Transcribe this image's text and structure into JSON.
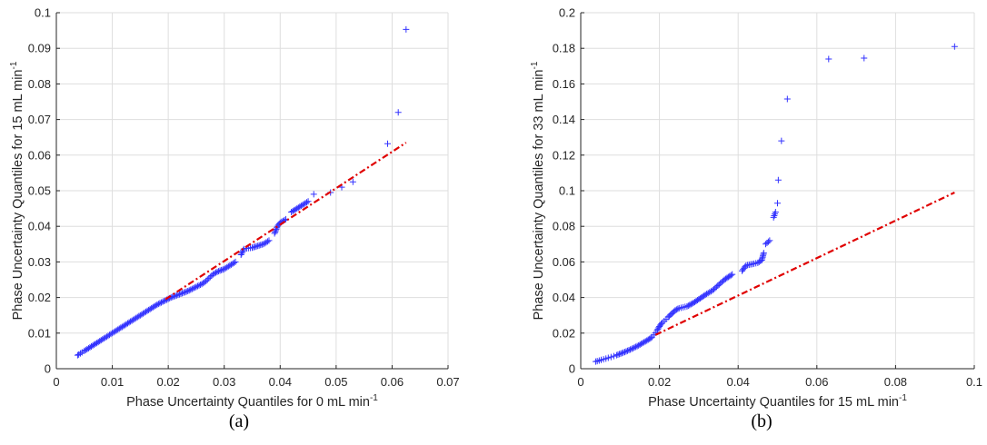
{
  "colors": {
    "points": "#3333ff",
    "reference": "#e00000",
    "grid": "#dedede",
    "axis": "#262626"
  },
  "chart_data": [
    {
      "type": "scatter",
      "panel_label": "(a)",
      "xlabel": "Phase Uncertainty Quantiles for 0 mL min",
      "xlabel_sup": "-1",
      "ylabel": "Phase Uncertainty Quantiles for 15 mL min",
      "ylabel_sup": "-1",
      "xlim": [
        0,
        0.07
      ],
      "ylim": [
        0,
        0.1
      ],
      "xticks": [
        0,
        0.01,
        0.02,
        0.03,
        0.04,
        0.05,
        0.06,
        0.07
      ],
      "xtick_labels": [
        "0",
        "0.01",
        "0.02",
        "0.03",
        "0.04",
        "0.05",
        "0.06",
        "0.07"
      ],
      "yticks": [
        0,
        0.01,
        0.02,
        0.03,
        0.04,
        0.05,
        0.06,
        0.07,
        0.08,
        0.09,
        0.1
      ],
      "ytick_labels": [
        "0",
        "0.01",
        "0.02",
        "0.03",
        "0.04",
        "0.05",
        "0.06",
        "0.07",
        "0.08",
        "0.09",
        "0.1"
      ],
      "grid": true,
      "reference_line": {
        "x": [
          0.0195,
          0.0625
        ],
        "y": [
          0.0195,
          0.0635
        ]
      },
      "series": [
        {
          "marker": "+",
          "points": [
            [
              0.0038,
              0.0038
            ],
            [
              0.004,
              0.004
            ],
            [
              0.0043,
              0.0043
            ],
            [
              0.0046,
              0.0046
            ],
            [
              0.005,
              0.005
            ],
            [
              0.0055,
              0.0055
            ],
            [
              0.006,
              0.006
            ],
            [
              0.0065,
              0.0065
            ],
            [
              0.007,
              0.007
            ],
            [
              0.0075,
              0.0075
            ],
            [
              0.008,
              0.008
            ],
            [
              0.0085,
              0.0085
            ],
            [
              0.009,
              0.009
            ],
            [
              0.0095,
              0.0095
            ],
            [
              0.01,
              0.01
            ],
            [
              0.0105,
              0.0105
            ],
            [
              0.011,
              0.011
            ],
            [
              0.0115,
              0.0115
            ],
            [
              0.012,
              0.012
            ],
            [
              0.0125,
              0.0125
            ],
            [
              0.013,
              0.013
            ],
            [
              0.0135,
              0.0135
            ],
            [
              0.014,
              0.014
            ],
            [
              0.0145,
              0.0145
            ],
            [
              0.015,
              0.015
            ],
            [
              0.0155,
              0.0155
            ],
            [
              0.016,
              0.016
            ],
            [
              0.0165,
              0.0165
            ],
            [
              0.017,
              0.017
            ],
            [
              0.0175,
              0.0175
            ],
            [
              0.018,
              0.018
            ],
            [
              0.0185,
              0.0184
            ],
            [
              0.019,
              0.0188
            ],
            [
              0.0195,
              0.0192
            ],
            [
              0.02,
              0.0196
            ],
            [
              0.0205,
              0.02
            ],
            [
              0.021,
              0.0203
            ],
            [
              0.0215,
              0.0206
            ],
            [
              0.022,
              0.0209
            ],
            [
              0.0225,
              0.0212
            ],
            [
              0.023,
              0.0215
            ],
            [
              0.0235,
              0.0218
            ],
            [
              0.024,
              0.0222
            ],
            [
              0.0245,
              0.0226
            ],
            [
              0.025,
              0.023
            ],
            [
              0.0255,
              0.0234
            ],
            [
              0.026,
              0.0238
            ],
            [
              0.0265,
              0.0243
            ],
            [
              0.027,
              0.025
            ],
            [
              0.0275,
              0.0258
            ],
            [
              0.028,
              0.0265
            ],
            [
              0.0285,
              0.027
            ],
            [
              0.029,
              0.0274
            ],
            [
              0.03,
              0.028
            ],
            [
              0.031,
              0.029
            ],
            [
              0.032,
              0.03
            ],
            [
              0.033,
              0.032
            ],
            [
              0.0335,
              0.0336
            ],
            [
              0.034,
              0.0338
            ],
            [
              0.035,
              0.034
            ],
            [
              0.036,
              0.0345
            ],
            [
              0.037,
              0.035
            ],
            [
              0.038,
              0.036
            ],
            [
              0.039,
              0.038
            ],
            [
              0.0395,
              0.04
            ],
            [
              0.04,
              0.041
            ],
            [
              0.041,
              0.042
            ],
            [
              0.042,
              0.044
            ],
            [
              0.043,
              0.045
            ],
            [
              0.044,
              0.046
            ],
            [
              0.045,
              0.047
            ],
            [
              0.046,
              0.049
            ],
            [
              0.049,
              0.0495
            ],
            [
              0.051,
              0.051
            ],
            [
              0.053,
              0.0525
            ],
            [
              0.0592,
              0.0632
            ],
            [
              0.0611,
              0.072
            ],
            [
              0.0625,
              0.0953
            ]
          ]
        }
      ]
    },
    {
      "type": "scatter",
      "panel_label": "(b)",
      "xlabel": "Phase Uncertainty Quantiles for 15 mL min",
      "xlabel_sup": "-1",
      "ylabel": "Phase Uncertainty Quantiles for 33 mL min",
      "ylabel_sup": "-1",
      "xlim": [
        0,
        0.1
      ],
      "ylim": [
        0,
        0.2
      ],
      "xticks": [
        0,
        0.02,
        0.04,
        0.06,
        0.08,
        0.1
      ],
      "xtick_labels": [
        "0",
        "0.02",
        "0.04",
        "0.06",
        "0.08",
        "0.1"
      ],
      "yticks": [
        0,
        0.02,
        0.04,
        0.06,
        0.08,
        0.1,
        0.12,
        0.14,
        0.16,
        0.18,
        0.2
      ],
      "ytick_labels": [
        "0",
        "0.02",
        "0.04",
        "0.06",
        "0.08",
        "0.1",
        "0.12",
        "0.14",
        "0.16",
        "0.18",
        "0.2"
      ],
      "grid": true,
      "reference_line": {
        "x": [
          0.019,
          0.095
        ],
        "y": [
          0.019,
          0.099
        ]
      },
      "series": [
        {
          "marker": "+",
          "points": [
            [
              0.0038,
              0.004
            ],
            [
              0.0042,
              0.0043
            ],
            [
              0.0047,
              0.0046
            ],
            [
              0.0052,
              0.005
            ],
            [
              0.0058,
              0.0053
            ],
            [
              0.0064,
              0.0057
            ],
            [
              0.007,
              0.0061
            ],
            [
              0.0077,
              0.0066
            ],
            [
              0.0084,
              0.0071
            ],
            [
              0.0091,
              0.0076
            ],
            [
              0.0098,
              0.0082
            ],
            [
              0.0105,
              0.0088
            ],
            [
              0.0112,
              0.0094
            ],
            [
              0.0119,
              0.0101
            ],
            [
              0.0126,
              0.0108
            ],
            [
              0.0133,
              0.0115
            ],
            [
              0.014,
              0.0123
            ],
            [
              0.0147,
              0.0131
            ],
            [
              0.0154,
              0.014
            ],
            [
              0.0161,
              0.0149
            ],
            [
              0.0168,
              0.0158
            ],
            [
              0.0175,
              0.0168
            ],
            [
              0.0181,
              0.0178
            ],
            [
              0.0186,
              0.019
            ],
            [
              0.019,
              0.0202
            ],
            [
              0.0194,
              0.0215
            ],
            [
              0.0198,
              0.023
            ],
            [
              0.0202,
              0.0245
            ],
            [
              0.0207,
              0.0258
            ],
            [
              0.0212,
              0.0268
            ],
            [
              0.0217,
              0.0278
            ],
            [
              0.0222,
              0.029
            ],
            [
              0.0228,
              0.0302
            ],
            [
              0.0234,
              0.0315
            ],
            [
              0.024,
              0.0328
            ],
            [
              0.025,
              0.034
            ],
            [
              0.026,
              0.0345
            ],
            [
              0.027,
              0.035
            ],
            [
              0.028,
              0.0362
            ],
            [
              0.029,
              0.0375
            ],
            [
              0.03,
              0.039
            ],
            [
              0.031,
              0.0405
            ],
            [
              0.032,
              0.042
            ],
            [
              0.0335,
              0.044
            ],
            [
              0.0345,
              0.046
            ],
            [
              0.0355,
              0.048
            ],
            [
              0.0365,
              0.05
            ],
            [
              0.0375,
              0.0515
            ],
            [
              0.0385,
              0.053
            ],
            [
              0.041,
              0.055
            ],
            [
              0.042,
              0.058
            ],
            [
              0.044,
              0.059
            ],
            [
              0.045,
              0.0595
            ],
            [
              0.046,
              0.061
            ],
            [
              0.0465,
              0.065
            ],
            [
              0.047,
              0.07
            ],
            [
              0.048,
              0.072
            ],
            [
              0.049,
              0.085
            ],
            [
              0.0495,
              0.088
            ],
            [
              0.05,
              0.093
            ],
            [
              0.0502,
              0.106
            ],
            [
              0.051,
              0.128
            ],
            [
              0.0525,
              0.1515
            ],
            [
              0.063,
              0.174
            ],
            [
              0.072,
              0.1745
            ],
            [
              0.095,
              0.181
            ]
          ]
        }
      ]
    }
  ]
}
